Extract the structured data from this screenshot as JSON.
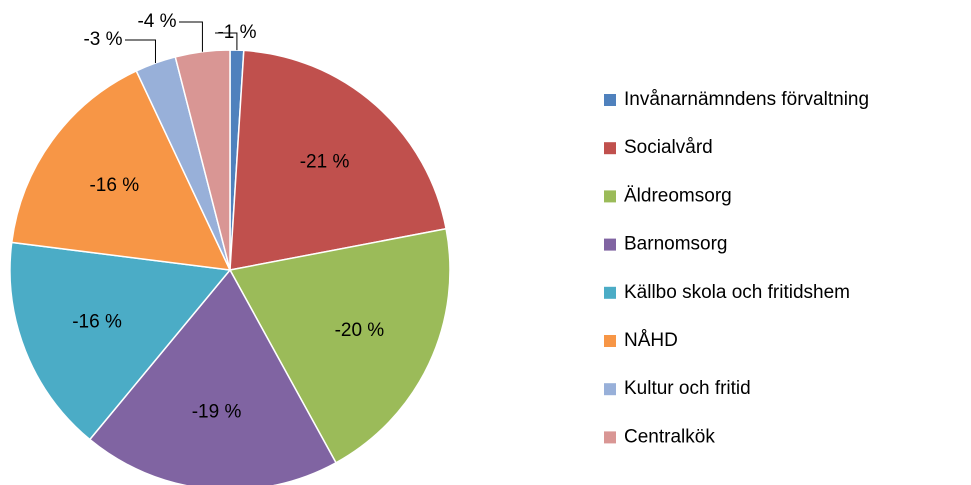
{
  "chart_data": {
    "type": "pie",
    "categories": [
      "Invånarnämndens förvaltning",
      "Socialvård",
      "Äldreomsorg",
      "Barnomsorg",
      "Källbo skola och fritidshem",
      "NÅHD",
      "Kultur och fritid",
      "Centralkök"
    ],
    "values": [
      -1,
      -21,
      -20,
      -19,
      -16,
      -16,
      -3,
      -4
    ],
    "value_labels": [
      "-1 %",
      "-21 %",
      "-20 %",
      "-19 %",
      "-16 %",
      "-16 %",
      "-3 %",
      "-4 %"
    ],
    "colors": [
      "#4f81bd",
      "#c0504d",
      "#9bbb59",
      "#8064a2",
      "#4bacc6",
      "#f79646",
      "#98b0d9",
      "#d99694"
    ],
    "legend": "right"
  }
}
